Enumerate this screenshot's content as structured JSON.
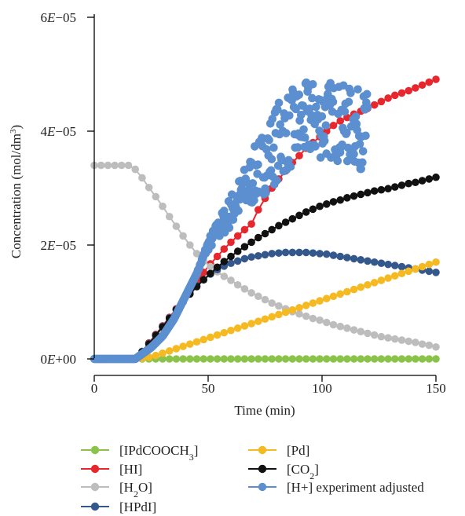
{
  "chart_data": {
    "type": "scatter",
    "xlabel": "Time (min)",
    "ylabel_main": "Concentration (mol/dm",
    "ylabel_sup": "3",
    "ylabel_close": ")",
    "xlim": [
      0,
      150
    ],
    "ylim": [
      0,
      6e-05
    ],
    "x_ticks": [
      {
        "value": 0,
        "label": "0"
      },
      {
        "value": 50,
        "label": "50"
      },
      {
        "value": 100,
        "label": "100"
      },
      {
        "value": 150,
        "label": "150"
      }
    ],
    "y_ticks": [
      {
        "value": 0,
        "mant": "0",
        "exp": "+00"
      },
      {
        "value": 2e-05,
        "mant": "2",
        "exp": "−05"
      },
      {
        "value": 4e-05,
        "mant": "4",
        "exp": "−05"
      },
      {
        "value": 6e-05,
        "mant": "6",
        "exp": "−05"
      }
    ],
    "grid": false,
    "legend_position": "bottom",
    "series": [
      {
        "name": "[IPdCOOCH3]",
        "legend_parts": [
          [
            "[IPdCOOCH",
            ""
          ],
          [
            "3",
            "sub"
          ],
          [
            "]",
            ""
          ]
        ],
        "color": "#8bc34a",
        "style": "line-markers",
        "x_start": 0,
        "x_step": 3,
        "values": [
          0,
          0,
          0,
          0,
          0,
          0,
          0,
          0,
          0,
          0,
          0,
          0,
          0,
          0,
          0,
          0,
          0,
          0,
          0,
          0,
          0,
          0,
          0,
          0,
          0,
          0,
          0,
          0,
          0,
          0,
          0,
          0,
          0,
          0,
          0,
          0,
          0,
          0,
          0,
          0,
          0,
          0,
          0,
          0,
          0,
          0,
          0,
          0,
          0,
          0,
          0
        ]
      },
      {
        "name": "[HI]",
        "legend_parts": [
          [
            "[HI]",
            ""
          ]
        ],
        "color": "#e8262e",
        "style": "line-markers",
        "x_start": 0,
        "x_step": 3,
        "values": [
          0,
          0,
          0,
          0,
          0,
          0,
          0,
          1.3e-06,
          2.8e-06,
          4.3e-06,
          5.8e-06,
          7.3e-06,
          8.8e-06,
          1.03e-05,
          1.19e-05,
          1.35e-05,
          1.52e-05,
          1.67e-05,
          1.8e-05,
          1.93e-05,
          2.05e-05,
          2.16e-05,
          2.27e-05,
          2.37e-05,
          2.62e-05,
          2.82e-05,
          3e-05,
          3.16e-05,
          3.3e-05,
          3.45e-05,
          3.57e-05,
          3.7e-05,
          3.8e-05,
          3.9e-05,
          4e-05,
          4.1e-05,
          4.18e-05,
          4.24e-05,
          4.3e-05,
          4.35e-05,
          4.4e-05,
          4.46e-05,
          4.52e-05,
          4.58e-05,
          4.63e-05,
          4.67e-05,
          4.71e-05,
          4.76e-05,
          4.81e-05,
          4.86e-05,
          4.91e-05
        ]
      },
      {
        "name": "[H2O]",
        "legend_parts": [
          [
            "[H",
            ""
          ],
          [
            "2",
            "sub"
          ],
          [
            "O]",
            ""
          ]
        ],
        "color": "#bdbdbd",
        "style": "line-markers",
        "x_start": 0,
        "x_step": 3,
        "values": [
          3.4e-05,
          3.4e-05,
          3.4e-05,
          3.4e-05,
          3.4e-05,
          3.4e-05,
          3.33e-05,
          3.18e-05,
          3.01e-05,
          2.85e-05,
          2.68e-05,
          2.5e-05,
          2.33e-05,
          2.16e-05,
          2e-05,
          1.85e-05,
          1.72e-05,
          1.62e-05,
          1.53e-05,
          1.45e-05,
          1.38e-05,
          1.3e-05,
          1.23e-05,
          1.16e-05,
          1.1e-05,
          1.04e-05,
          9.8e-06,
          9.3e-06,
          8.8e-06,
          8.3e-06,
          7.9e-06,
          7.5e-06,
          7.1e-06,
          6.8e-06,
          6.4e-06,
          6e-06,
          5.7e-06,
          5.4e-06,
          5.1e-06,
          4.8e-06,
          4.5e-06,
          4.2e-06,
          3.9e-06,
          3.7e-06,
          3.5e-06,
          3.3e-06,
          3.1e-06,
          2.9e-06,
          2.6e-06,
          2.4e-06,
          2.1e-06
        ]
      },
      {
        "name": "[HPdI]",
        "legend_parts": [
          [
            "[HPdI]",
            ""
          ]
        ],
        "color": "#34588c",
        "style": "line-markers",
        "x_start": 0,
        "x_step": 3,
        "values": [
          0,
          0,
          0,
          0,
          0,
          0,
          0,
          1.3e-06,
          2.7e-06,
          4.2e-06,
          5.7e-06,
          7.2e-06,
          8.7e-06,
          1.01e-05,
          1.15e-05,
          1.28e-05,
          1.39e-05,
          1.49e-05,
          1.57e-05,
          1.63e-05,
          1.68e-05,
          1.72e-05,
          1.76e-05,
          1.79e-05,
          1.81e-05,
          1.83e-05,
          1.85e-05,
          1.86e-05,
          1.87e-05,
          1.87e-05,
          1.87e-05,
          1.87e-05,
          1.86e-05,
          1.85e-05,
          1.84e-05,
          1.82e-05,
          1.8e-05,
          1.78e-05,
          1.76e-05,
          1.74e-05,
          1.72e-05,
          1.7e-05,
          1.68e-05,
          1.66e-05,
          1.64e-05,
          1.62e-05,
          1.6e-05,
          1.58e-05,
          1.56e-05,
          1.54e-05,
          1.52e-05
        ]
      },
      {
        "name": "[Pd]",
        "legend_parts": [
          [
            "[Pd]",
            ""
          ]
        ],
        "color": "#f5b921",
        "style": "line-markers",
        "x_start": 0,
        "x_step": 3,
        "values": [
          0,
          0,
          0,
          0,
          0,
          0,
          0,
          1e-07,
          3e-07,
          6e-07,
          1e-06,
          1.4e-06,
          1.8e-06,
          2.2e-06,
          2.6e-06,
          3e-06,
          3.4e-06,
          3.8e-06,
          4.2e-06,
          4.6e-06,
          5e-06,
          5.4e-06,
          5.8e-06,
          6.2e-06,
          6.6e-06,
          7e-06,
          7.4e-06,
          7.8e-06,
          8.2e-06,
          8.6e-06,
          9e-06,
          9.4e-06,
          9.8e-06,
          1.02e-05,
          1.06e-05,
          1.1e-05,
          1.14e-05,
          1.18e-05,
          1.22e-05,
          1.26e-05,
          1.3e-05,
          1.34e-05,
          1.38e-05,
          1.42e-05,
          1.46e-05,
          1.5e-05,
          1.54e-05,
          1.58e-05,
          1.62e-05,
          1.66e-05,
          1.7e-05
        ]
      },
      {
        "name": "[CO2]",
        "legend_parts": [
          [
            "[CO",
            ""
          ],
          [
            "2",
            "sub"
          ],
          [
            "]",
            ""
          ]
        ],
        "color": "#111111",
        "style": "line-markers",
        "x_start": 0,
        "x_step": 3,
        "values": [
          0,
          0,
          0,
          0,
          0,
          0,
          0,
          1.2e-06,
          2.6e-06,
          4.1e-06,
          5.6e-06,
          7.1e-06,
          8.6e-06,
          1e-05,
          1.14e-05,
          1.27e-05,
          1.39e-05,
          1.5e-05,
          1.61e-05,
          1.71e-05,
          1.8e-05,
          1.89e-05,
          1.97e-05,
          2.05e-05,
          2.13e-05,
          2.2e-05,
          2.27e-05,
          2.34e-05,
          2.4e-05,
          2.46e-05,
          2.52e-05,
          2.58e-05,
          2.63e-05,
          2.68e-05,
          2.72e-05,
          2.76e-05,
          2.79e-05,
          2.83e-05,
          2.86e-05,
          2.89e-05,
          2.92e-05,
          2.95e-05,
          2.97e-05,
          2.99e-05,
          3.02e-05,
          3.05e-05,
          3.08e-05,
          3.1e-05,
          3.13e-05,
          3.16e-05,
          3.19e-05
        ]
      },
      {
        "name": "[H+] experiment adjusted",
        "legend_parts": [
          [
            "[H+] experiment adjusted",
            ""
          ]
        ],
        "color": "#5b8fd0",
        "style": "markers",
        "trend": [
          [
            0,
            0
          ],
          [
            18,
            0
          ],
          [
            25,
            2e-06
          ],
          [
            30,
            4e-06
          ],
          [
            35,
            7e-06
          ],
          [
            40,
            1.1e-05
          ],
          [
            45,
            1.5e-05
          ],
          [
            50,
            2e-05
          ],
          [
            55,
            2.3e-05
          ],
          [
            60,
            2.6e-05
          ],
          [
            65,
            2.9e-05
          ],
          [
            70,
            3.2e-05
          ],
          [
            75,
            3.5e-05
          ],
          [
            80,
            3.8e-05
          ],
          [
            85,
            4e-05
          ],
          [
            90,
            4.1e-05
          ],
          [
            95,
            4.2e-05
          ],
          [
            100,
            4.2e-05
          ],
          [
            105,
            4.2e-05
          ],
          [
            110,
            4.1e-05
          ],
          [
            120,
            4e-05
          ]
        ],
        "x_range": [
          0,
          120
        ],
        "n_points": 420,
        "noise": 7e-06
      }
    ]
  }
}
